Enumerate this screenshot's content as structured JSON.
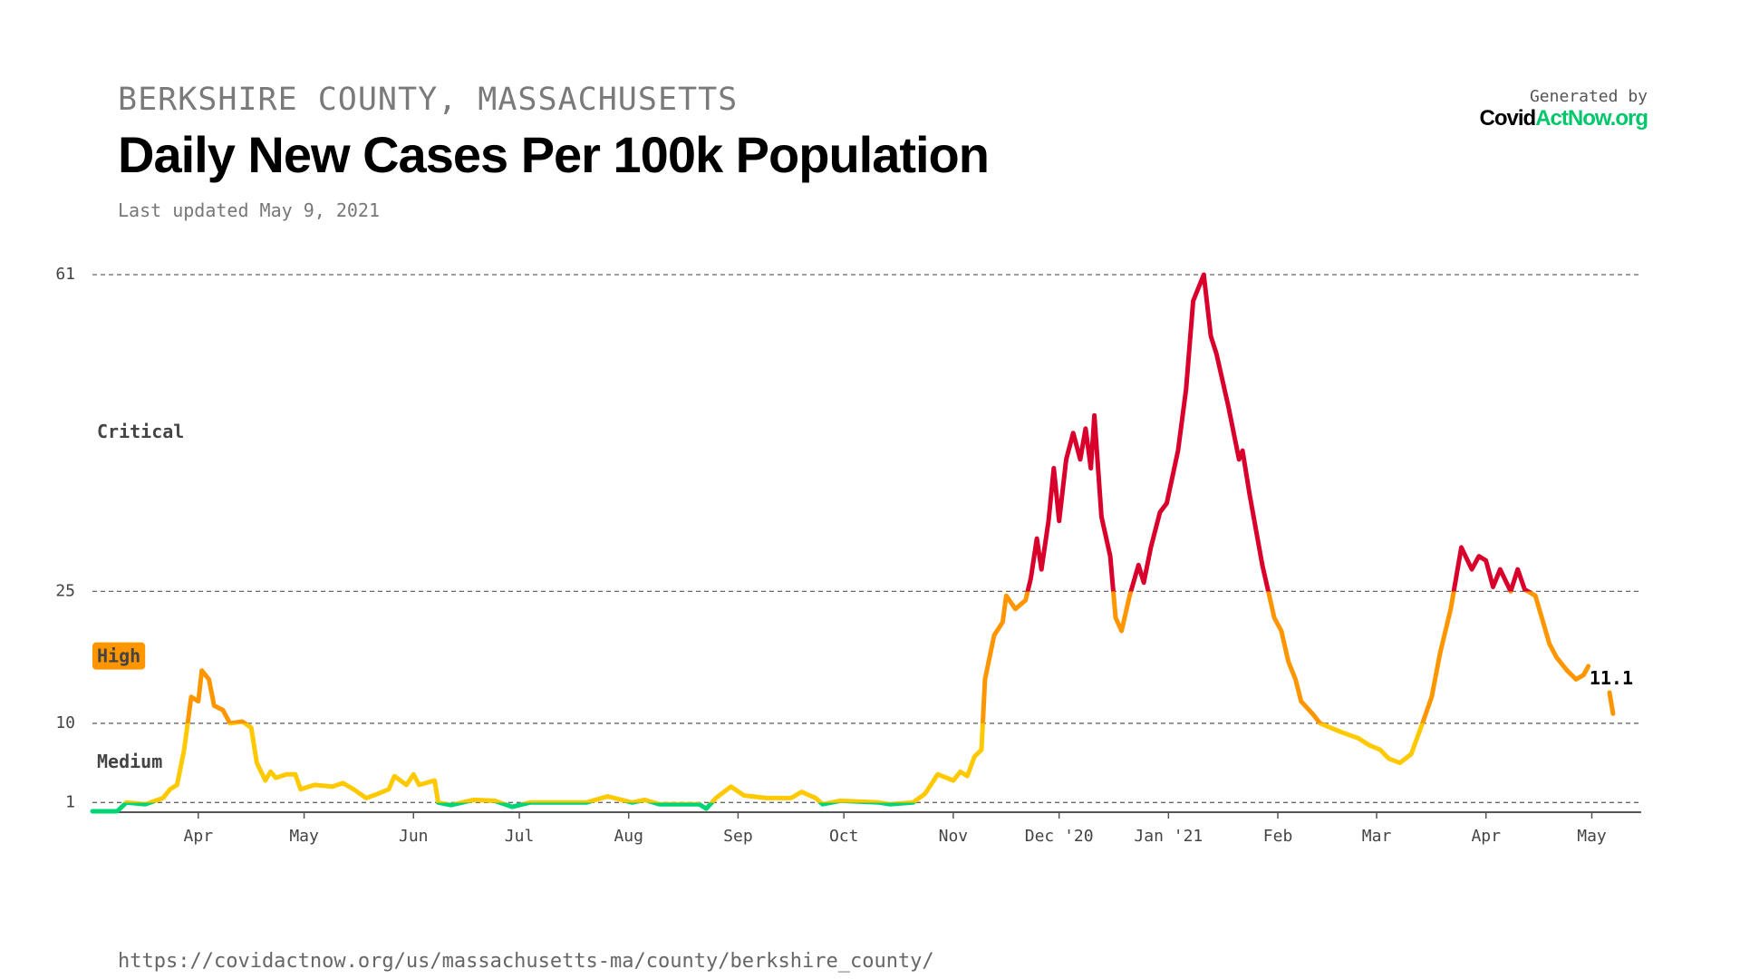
{
  "header": {
    "supertitle": "BERKSHIRE COUNTY, MASSACHUSETTS",
    "updated": "Last updated May 9, 2021"
  },
  "logo": {
    "caption": "Generated by",
    "name_part1": "Covid",
    "name_part2": "ActNow.org"
  },
  "footer": {
    "url": "https://covidactnow.org/us/massachusetts-ma/county/berkshire_county/"
  },
  "chart_data": {
    "type": "line",
    "title": "Daily New Cases Per 100k Population",
    "xlim": [
      0,
      439
    ],
    "xticks": [
      {
        "value": 30,
        "label": "Apr"
      },
      {
        "value": 60,
        "label": "May"
      },
      {
        "value": 91,
        "label": "Jun"
      },
      {
        "value": 121,
        "label": "Jul"
      },
      {
        "value": 152,
        "label": "Aug"
      },
      {
        "value": 183,
        "label": "Sep"
      },
      {
        "value": 213,
        "label": "Oct"
      },
      {
        "value": 244,
        "label": "Nov"
      },
      {
        "value": 274,
        "label": "Dec '20"
      },
      {
        "value": 305,
        "label": "Jan '21"
      },
      {
        "value": 336,
        "label": "Feb"
      },
      {
        "value": 364,
        "label": "Mar"
      },
      {
        "value": 395,
        "label": "Apr"
      },
      {
        "value": 425,
        "label": "May"
      }
    ],
    "ylim": [
      0,
      61
    ],
    "yticks": [
      1,
      10,
      25,
      61
    ],
    "grid": true,
    "level_colors": [
      "#00d474",
      "#ffc900",
      "#ff9600",
      "#d9002c"
    ],
    "level_labels": [
      "Medium",
      "High",
      "Critical"
    ],
    "x": [
      0,
      7,
      9.6,
      15,
      20,
      22,
      24,
      26,
      28,
      30,
      31,
      33,
      34.5,
      37,
      39,
      42.5,
      45,
      46.6,
      49,
      50.5,
      52,
      55,
      57.5,
      59,
      63,
      68,
      71,
      74,
      77.6,
      81,
      84,
      85.6,
      89,
      91,
      92.6,
      97,
      98,
      101.6,
      108,
      114,
      119,
      124,
      133.5,
      140,
      146,
      153,
      156.5,
      160.7,
      172,
      174,
      176.7,
      181,
      184.7,
      191,
      198,
      201,
      205,
      207,
      212,
      223,
      226,
      232.6,
      236,
      239.6,
      244,
      246,
      248,
      250,
      252,
      253,
      255.6,
      258,
      259,
      261.6,
      264.5,
      266,
      267.7,
      269,
      271,
      272.5,
      274,
      276,
      278,
      280,
      281.5,
      283,
      284,
      286,
      288.5,
      290,
      291.7,
      294,
      296.5,
      298,
      300,
      302.6,
      304.5,
      307.7,
      310,
      312,
      314,
      315,
      317,
      318.6,
      322,
      325,
      326,
      328,
      331.6,
      335,
      337,
      339,
      341,
      342.6,
      346,
      348,
      354,
      358.8,
      362,
      365,
      367.4,
      370.6,
      373.8,
      377,
      379.6,
      382,
      385,
      388,
      391,
      393,
      395,
      397,
      399,
      402,
      404,
      406,
      409,
      413,
      415,
      418,
      420.5,
      422.7,
      424,
      427,
      430,
      431
    ],
    "series": [
      {
        "name": "Daily new cases per 100k",
        "values": [
          0,
          0,
          1,
          0.8,
          1.5,
          2.5,
          3,
          7,
          13,
          12.5,
          16,
          15,
          12,
          11.5,
          10,
          10.2,
          9.5,
          5.5,
          3.5,
          4.5,
          3.8,
          4.2,
          4.2,
          2.5,
          3,
          2.8,
          3.2,
          2.5,
          1.5,
          2,
          2.5,
          4,
          3,
          4.2,
          3,
          3.5,
          1,
          0.7,
          1.3,
          1.2,
          0.5,
          1,
          1,
          1,
          1.7,
          1,
          1.3,
          0.8,
          0.8,
          0.3,
          1.5,
          2.8,
          1.8,
          1.5,
          1.5,
          2.2,
          1.5,
          0.8,
          1.2,
          1,
          0.8,
          1,
          2,
          4.2,
          3.5,
          4.5,
          4,
          6.2,
          7,
          15,
          20,
          21.5,
          24.5,
          23,
          24,
          26.5,
          31,
          27.5,
          33,
          39,
          33,
          40,
          43,
          40,
          43.5,
          39,
          45,
          33.5,
          29,
          22,
          20.5,
          24.5,
          28,
          26,
          30,
          34,
          35,
          41,
          48,
          58,
          60,
          61,
          54,
          52,
          46,
          40,
          41,
          36,
          28,
          22,
          20.5,
          17,
          15,
          12.5,
          11,
          10,
          9,
          8.3,
          7.5,
          7,
          6,
          5.5,
          6.5,
          10,
          13,
          18,
          23,
          30,
          27.5,
          29,
          28.5,
          25.5,
          27.5,
          25,
          27.5,
          25.2,
          24.5,
          19,
          17.5,
          16,
          15,
          15.5,
          16.5,
          null,
          13.5,
          11.1
        ]
      }
    ]
  }
}
